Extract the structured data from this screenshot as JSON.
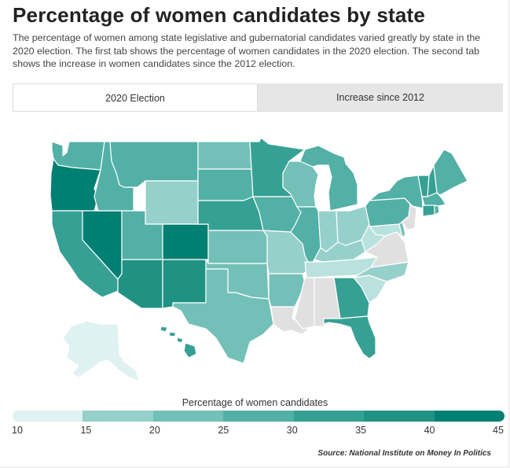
{
  "title": "Percentage of women candidates by state",
  "subtitle": "The percentage of women among state legislative and gubernatorial candidates varied greatly by state in the 2020 election. The first tab shows the percentage of women candidates in the 2020 election. The second tab shows the increase in women candidates since the 2012 election.",
  "tabs": [
    {
      "label": "2020 Election",
      "active": true
    },
    {
      "label": "Increase since 2012",
      "active": false
    }
  ],
  "legend": {
    "title": "Percentage of women candidates",
    "ticks": [
      "10",
      "15",
      "20",
      "25",
      "30",
      "35",
      "40",
      "45"
    ],
    "colors": [
      "#dff1f0",
      "#b9e1dd",
      "#96d0ca",
      "#73c0b8",
      "#52b0a6",
      "#36a094",
      "#1f9284",
      "#007f73"
    ]
  },
  "nodata_color": "#e0e0e0",
  "source": "Source: National Institute on Money In Politics",
  "states": [
    {
      "name": "Washington",
      "bin": 4
    },
    {
      "name": "Oregon",
      "bin": 7
    },
    {
      "name": "California",
      "bin": 5
    },
    {
      "name": "Nevada",
      "bin": 7
    },
    {
      "name": "Idaho",
      "bin": 4
    },
    {
      "name": "Montana",
      "bin": 4
    },
    {
      "name": "Wyoming",
      "bin": 2
    },
    {
      "name": "Utah",
      "bin": 4
    },
    {
      "name": "Colorado",
      "bin": 7
    },
    {
      "name": "Arizona",
      "bin": 6
    },
    {
      "name": "New Mexico",
      "bin": 6
    },
    {
      "name": "North Dakota",
      "bin": 3
    },
    {
      "name": "South Dakota",
      "bin": 4
    },
    {
      "name": "Nebraska",
      "bin": 5
    },
    {
      "name": "Kansas",
      "bin": 3
    },
    {
      "name": "Oklahoma",
      "bin": 3
    },
    {
      "name": "Texas",
      "bin": 3
    },
    {
      "name": "Minnesota",
      "bin": 5
    },
    {
      "name": "Iowa",
      "bin": 4
    },
    {
      "name": "Missouri",
      "bin": 2
    },
    {
      "name": "Arkansas",
      "bin": 3
    },
    {
      "name": "Louisiana",
      "bin": null
    },
    {
      "name": "Wisconsin",
      "bin": 3
    },
    {
      "name": "Illinois",
      "bin": 4
    },
    {
      "name": "Michigan",
      "bin": 4
    },
    {
      "name": "Indiana",
      "bin": 2
    },
    {
      "name": "Ohio",
      "bin": 2
    },
    {
      "name": "Kentucky",
      "bin": 2
    },
    {
      "name": "Tennessee",
      "bin": 1
    },
    {
      "name": "Mississippi",
      "bin": null
    },
    {
      "name": "Alabama",
      "bin": null
    },
    {
      "name": "Georgia",
      "bin": 5
    },
    {
      "name": "Florida",
      "bin": 5
    },
    {
      "name": "South Carolina",
      "bin": 1
    },
    {
      "name": "North Carolina",
      "bin": 2
    },
    {
      "name": "Virginia",
      "bin": null
    },
    {
      "name": "West Virginia",
      "bin": 1
    },
    {
      "name": "Pennsylvania",
      "bin": 4
    },
    {
      "name": "New York",
      "bin": 4
    },
    {
      "name": "Maryland",
      "bin": 1
    },
    {
      "name": "Delaware",
      "bin": 3
    },
    {
      "name": "New Jersey",
      "bin": null
    },
    {
      "name": "Vermont",
      "bin": 5
    },
    {
      "name": "New Hampshire",
      "bin": 5
    },
    {
      "name": "Maine",
      "bin": 4
    },
    {
      "name": "Massachusetts",
      "bin": 4
    },
    {
      "name": "Connecticut",
      "bin": 5
    },
    {
      "name": "Rhode Island",
      "bin": 4
    },
    {
      "name": "Alaska",
      "bin": 0
    },
    {
      "name": "Hawaii",
      "bin": 5
    }
  ]
}
